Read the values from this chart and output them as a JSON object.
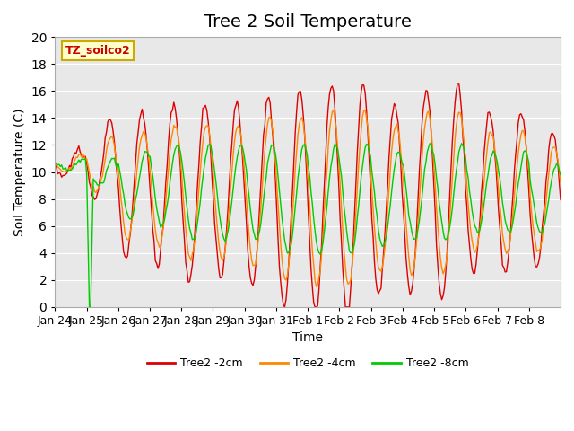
{
  "title": "Tree 2 Soil Temperature",
  "xlabel": "Time",
  "ylabel": "Soil Temperature (C)",
  "ylim": [
    0,
    20
  ],
  "annotation": "TZ_soilco2",
  "annotation_color": "#cc0000",
  "annotation_bg": "#ffffcc",
  "annotation_border": "#ccaa00",
  "bg_color": "#e8e8e8",
  "fig_bg": "#ffffff",
  "grid_color": "#ffffff",
  "line_colors": [
    "#dd0000",
    "#ff8800",
    "#00cc00"
  ],
  "line_labels": [
    "Tree2 -2cm",
    "Tree2 -4cm",
    "Tree2 -8cm"
  ],
  "x_tick_labels": [
    "Jan 24",
    "Jan 25",
    "Jan 26",
    "Jan 27",
    "Jan 28",
    "Jan 29",
    "Jan 30",
    "Jan 31",
    "Feb 1",
    "Feb 2",
    "Feb 3",
    "Feb 4",
    "Feb 5",
    "Feb 6",
    "Feb 7",
    "Feb 8"
  ],
  "title_fontsize": 14,
  "axis_label_fontsize": 10,
  "tick_fontsize": 9,
  "n_days": 16
}
